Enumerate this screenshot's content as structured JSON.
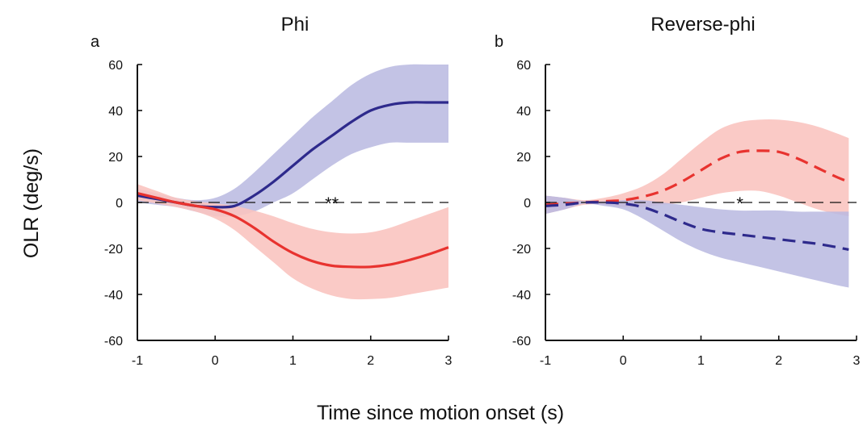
{
  "figure": {
    "ylabel": "OLR (deg/s)",
    "xlabel": "Time since motion onset (s)"
  },
  "colors": {
    "blue_line": "#2e2a8c",
    "blue_band": "#b9b9e0",
    "red_line": "#e8332f",
    "red_band": "#f9c4c0",
    "axis": "#111111"
  },
  "chart_data": [
    {
      "type": "line",
      "panel_letter": "a",
      "title": "Phi",
      "xlim": [
        -1,
        3
      ],
      "ylim": [
        -60,
        60
      ],
      "xticks": [
        -1,
        0,
        1,
        2,
        3
      ],
      "yticks": [
        60,
        40,
        20,
        0,
        -20,
        -40,
        -60
      ],
      "reference_line": {
        "y": 0,
        "style": "dashed"
      },
      "significance": {
        "label": "**",
        "x": 1.5,
        "y": 0
      },
      "series": [
        {
          "color": "blue",
          "line_style": "solid",
          "x": [
            -1,
            -0.75,
            -0.5,
            -0.25,
            0,
            0.25,
            0.5,
            0.75,
            1,
            1.25,
            1.5,
            1.75,
            2,
            2.25,
            2.5,
            2.75,
            3
          ],
          "y": [
            3,
            1.5,
            0,
            -1.5,
            -2,
            -1.5,
            3,
            9,
            16,
            23,
            29,
            35,
            40,
            42.5,
            43.5,
            43.5,
            43.5
          ],
          "y_upper": [
            6,
            4,
            2,
            1,
            2,
            6,
            13,
            21,
            29,
            37,
            44,
            51,
            56,
            59,
            60,
            60,
            60
          ],
          "y_lower": [
            0,
            -1,
            -2,
            -4,
            -6,
            -6,
            -4,
            0,
            4,
            10,
            16,
            21,
            24,
            26,
            26,
            26,
            26
          ]
        },
        {
          "color": "red",
          "line_style": "solid",
          "x": [
            -1,
            -0.75,
            -0.5,
            -0.25,
            0,
            0.25,
            0.5,
            0.75,
            1,
            1.25,
            1.5,
            1.75,
            2,
            2.25,
            2.5,
            2.75,
            3
          ],
          "y": [
            4,
            2,
            0,
            -1.5,
            -3,
            -6,
            -11,
            -17,
            -22,
            -25.5,
            -27.5,
            -28,
            -28,
            -27,
            -25,
            -22.5,
            -19.5
          ],
          "y_upper": [
            8,
            5,
            2,
            0.5,
            -0.5,
            -1.5,
            -3.5,
            -6,
            -9,
            -11.5,
            -13,
            -13.5,
            -13,
            -11,
            -8,
            -5,
            -2
          ],
          "y_lower": [
            1,
            -0.5,
            -2,
            -4,
            -7,
            -12,
            -19,
            -26,
            -33,
            -37.5,
            -40.5,
            -42,
            -42,
            -41.5,
            -40,
            -38.5,
            -37
          ]
        }
      ]
    },
    {
      "type": "line",
      "panel_letter": "b",
      "title": "Reverse-phi",
      "xlim": [
        -1,
        3
      ],
      "ylim": [
        -60,
        60
      ],
      "xticks": [
        -1,
        0,
        1,
        2,
        3
      ],
      "yticks": [
        60,
        40,
        20,
        0,
        -20,
        -40,
        -60
      ],
      "reference_line": {
        "y": 0,
        "style": "dashed"
      },
      "significance": {
        "label": "*",
        "x": 1.5,
        "y": 0
      },
      "series": [
        {
          "color": "red",
          "line_style": "dashed",
          "x": [
            -1,
            -0.75,
            -0.5,
            -0.25,
            0,
            0.25,
            0.5,
            0.75,
            1,
            1.25,
            1.5,
            1.75,
            2,
            2.25,
            2.5,
            2.75,
            2.9
          ],
          "y": [
            -1,
            -0.5,
            0,
            0.5,
            1,
            2.5,
            5,
            9,
            14,
            19,
            22,
            22.5,
            22,
            19,
            15,
            11,
            9
          ],
          "y_upper": [
            3,
            2,
            1,
            2,
            4,
            7,
            12,
            19,
            26,
            32,
            35,
            36,
            36,
            35,
            33,
            30,
            28
          ],
          "y_lower": [
            -5,
            -3,
            -1,
            -1,
            -2,
            -2,
            -1,
            0,
            2,
            4,
            5,
            5,
            3,
            0,
            -3,
            -5,
            -6
          ]
        },
        {
          "color": "blue",
          "line_style": "dashed",
          "x": [
            -1,
            -0.75,
            -0.5,
            -0.25,
            0,
            0.25,
            0.5,
            0.75,
            1,
            1.25,
            1.5,
            1.75,
            2,
            2.25,
            2.5,
            2.75,
            2.9
          ],
          "y": [
            -1.5,
            -1,
            0,
            0,
            -0.5,
            -2,
            -5,
            -8.5,
            -11.5,
            -13,
            -14,
            -15,
            -16,
            -17,
            -18,
            -19.5,
            -20.5
          ],
          "y_upper": [
            3,
            2,
            0.5,
            0.5,
            1,
            1,
            0,
            -1,
            -2,
            -3,
            -3.5,
            -3.5,
            -3.5,
            -4,
            -4,
            -4,
            -4
          ],
          "y_lower": [
            -5,
            -3,
            -0.5,
            -1.5,
            -3,
            -7,
            -12,
            -17,
            -21,
            -24,
            -26,
            -28,
            -30,
            -32,
            -34,
            -36,
            -37
          ]
        }
      ]
    }
  ]
}
